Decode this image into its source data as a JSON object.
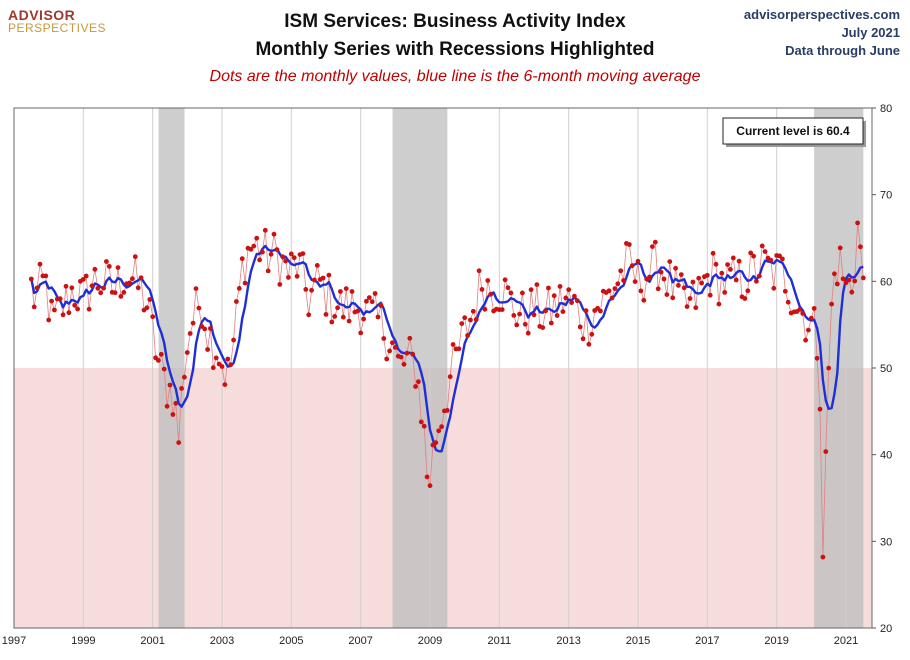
{
  "header": {
    "logo_top": "ADVISOR",
    "logo_bottom": "PERSPECTIVES",
    "title_line1": "ISM Services: Business Activity Index",
    "title_line2": "Monthly Series with Recessions Highlighted",
    "subtitle": "Dots are the monthly values, blue line is the 6-month moving average",
    "source_site": "advisorperspectives.com",
    "source_date": "July 2021",
    "source_note": "Data through June"
  },
  "callout": "Current level is 60.4",
  "colors": {
    "dot": "#cc1111",
    "thin_line": "#e08080",
    "ma_line": "#1f2fd6",
    "recession": "#bdbdbd",
    "contraction_zone": "#f7dcdc"
  },
  "chart_data": {
    "type": "line",
    "title": "ISM Services: Business Activity Index",
    "xlim": [
      1997.0,
      2021.75
    ],
    "ylim": [
      20,
      80
    ],
    "y_axis_side": "right",
    "x_ticks": [
      "1997",
      "1999",
      "2001",
      "2003",
      "2005",
      "2007",
      "2009",
      "2011",
      "2013",
      "2015",
      "2017",
      "2019",
      "2021"
    ],
    "y_ticks": [
      20,
      30,
      40,
      50,
      60,
      70,
      80
    ],
    "grid": "vertical",
    "contraction_threshold": 50,
    "recessions": [
      {
        "start": 2001.17,
        "end": 2001.92
      },
      {
        "start": 2007.92,
        "end": 2009.5
      },
      {
        "start": 2020.08,
        "end": 2021.5
      }
    ],
    "anchors": [
      [
        1997.0,
        59
      ],
      [
        1997.3,
        62
      ],
      [
        1997.6,
        58
      ],
      [
        1997.9,
        60
      ],
      [
        1998.1,
        55
      ],
      [
        1998.4,
        57
      ],
      [
        1998.7,
        59
      ],
      [
        1999.0,
        58
      ],
      [
        1999.3,
        60
      ],
      [
        1999.6,
        60
      ],
      [
        1999.9,
        59
      ],
      [
        2000.2,
        61
      ],
      [
        2000.5,
        60
      ],
      [
        2000.8,
        58
      ],
      [
        2001.0,
        54
      ],
      [
        2001.2,
        50
      ],
      [
        2001.4,
        48
      ],
      [
        2001.6,
        47
      ],
      [
        2001.75,
        42
      ],
      [
        2001.9,
        50
      ],
      [
        2002.1,
        55
      ],
      [
        2002.4,
        58
      ],
      [
        2002.6,
        54
      ],
      [
        2002.9,
        52
      ],
      [
        2003.05,
        50
      ],
      [
        2003.2,
        49
      ],
      [
        2003.4,
        55
      ],
      [
        2003.6,
        62
      ],
      [
        2003.8,
        64
      ],
      [
        2004.0,
        64
      ],
      [
        2004.3,
        63
      ],
      [
        2004.6,
        63
      ],
      [
        2004.9,
        61
      ],
      [
        2005.2,
        62
      ],
      [
        2005.5,
        58
      ],
      [
        2005.8,
        60
      ],
      [
        2006.1,
        58
      ],
      [
        2006.4,
        57
      ],
      [
        2006.7,
        57
      ],
      [
        2007.0,
        57
      ],
      [
        2007.3,
        56
      ],
      [
        2007.6,
        55
      ],
      [
        2007.9,
        53
      ],
      [
        2008.1,
        50
      ],
      [
        2008.4,
        51
      ],
      [
        2008.6,
        50
      ],
      [
        2008.8,
        44
      ],
      [
        2008.95,
        36
      ],
      [
        2009.15,
        42
      ],
      [
        2009.35,
        45
      ],
      [
        2009.6,
        49
      ],
      [
        2009.9,
        53
      ],
      [
        2010.2,
        56
      ],
      [
        2010.5,
        60
      ],
      [
        2010.8,
        59
      ],
      [
        2011.1,
        59
      ],
      [
        2011.4,
        57
      ],
      [
        2011.7,
        56
      ],
      [
        2012.0,
        57
      ],
      [
        2012.3,
        56
      ],
      [
        2012.6,
        57
      ],
      [
        2012.9,
        58
      ],
      [
        2013.2,
        57
      ],
      [
        2013.5,
        55
      ],
      [
        2013.8,
        57
      ],
      [
        2014.1,
        58
      ],
      [
        2014.4,
        60
      ],
      [
        2014.7,
        62
      ],
      [
        2015.0,
        60
      ],
      [
        2015.3,
        61
      ],
      [
        2015.6,
        62
      ],
      [
        2015.9,
        60
      ],
      [
        2016.2,
        58
      ],
      [
        2016.5,
        57
      ],
      [
        2016.8,
        59
      ],
      [
        2017.1,
        61
      ],
      [
        2017.4,
        60
      ],
      [
        2017.7,
        60
      ],
      [
        2018.0,
        60
      ],
      [
        2018.3,
        61
      ],
      [
        2018.6,
        62
      ],
      [
        2018.9,
        61
      ],
      [
        2019.2,
        61
      ],
      [
        2019.5,
        58
      ],
      [
        2019.8,
        56
      ],
      [
        2020.0,
        55
      ],
      [
        2020.15,
        54
      ],
      [
        2020.25,
        48
      ],
      [
        2020.35,
        26
      ],
      [
        2020.45,
        45
      ],
      [
        2020.55,
        55
      ],
      [
        2020.7,
        62
      ],
      [
        2020.85,
        62
      ],
      [
        2021.0,
        59
      ],
      [
        2021.2,
        60
      ],
      [
        2021.35,
        67
      ],
      [
        2021.45,
        62
      ],
      [
        2021.5,
        60.4
      ]
    ],
    "current_value": 60.4
  }
}
